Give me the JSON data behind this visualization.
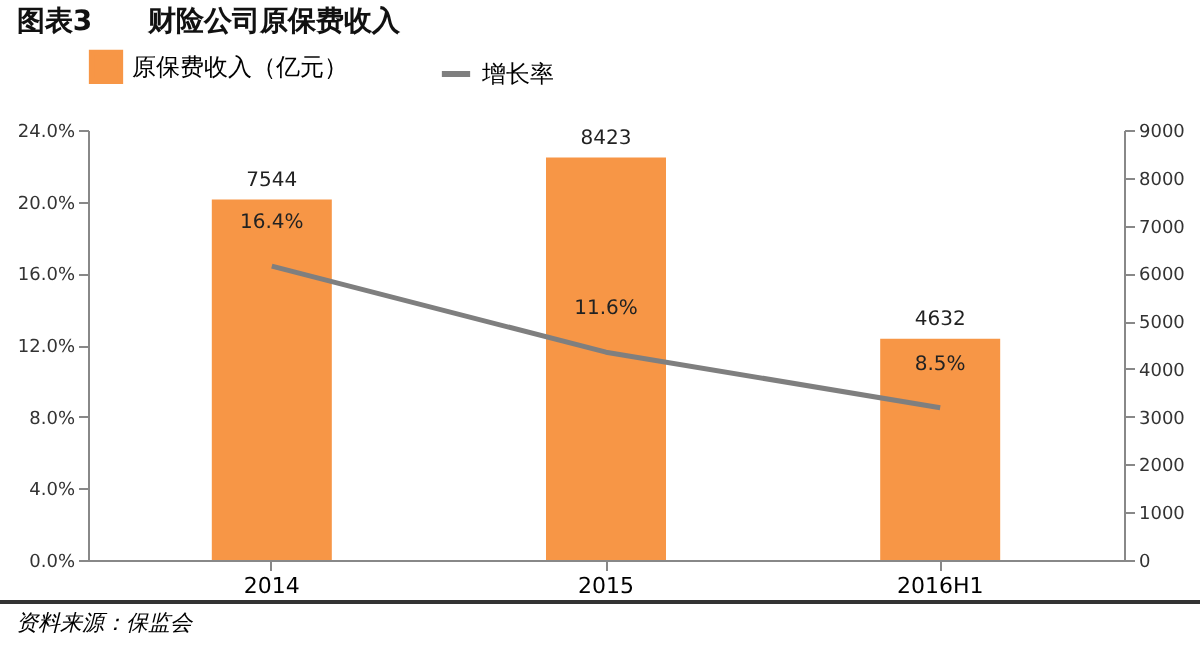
{
  "chart_data": {
    "type": "bar",
    "title": "图表3　　财险公司原保费收入",
    "categories": [
      "2014",
      "2015",
      "2016H1"
    ],
    "series": [
      {
        "name": "原保费收入（亿元）",
        "axis": "y2",
        "color": "#f79646",
        "values": [
          7544,
          8423,
          4632
        ],
        "value_labels": [
          "7544",
          "8423",
          "4632"
        ]
      },
      {
        "name": "增长率",
        "type": "line",
        "axis": "y",
        "color": "#7f7f7f",
        "values": [
          16.4,
          11.6,
          8.5
        ],
        "value_labels": [
          "16.4%",
          "11.6%",
          "8.5%"
        ]
      }
    ],
    "ylim": [
      0,
      24
    ],
    "yticks": [
      {
        "value": 0,
        "label": "0.0%"
      },
      {
        "value": 4,
        "label": "4.0%"
      },
      {
        "value": 8,
        "label": "8.0%"
      },
      {
        "value": 12,
        "label": "12.0%"
      },
      {
        "value": 16,
        "label": "16.0%"
      },
      {
        "value": 20,
        "label": "20.0%"
      },
      {
        "value": 24,
        "label": "24.0%"
      }
    ],
    "y2lim": [
      0,
      9000
    ],
    "y2ticks": [
      0,
      1000,
      2000,
      3000,
      4000,
      5000,
      6000,
      7000,
      8000,
      9000
    ],
    "legend": "top",
    "grid": false,
    "marker": "none",
    "annotations": [
      "资料来源：保监会"
    ]
  }
}
